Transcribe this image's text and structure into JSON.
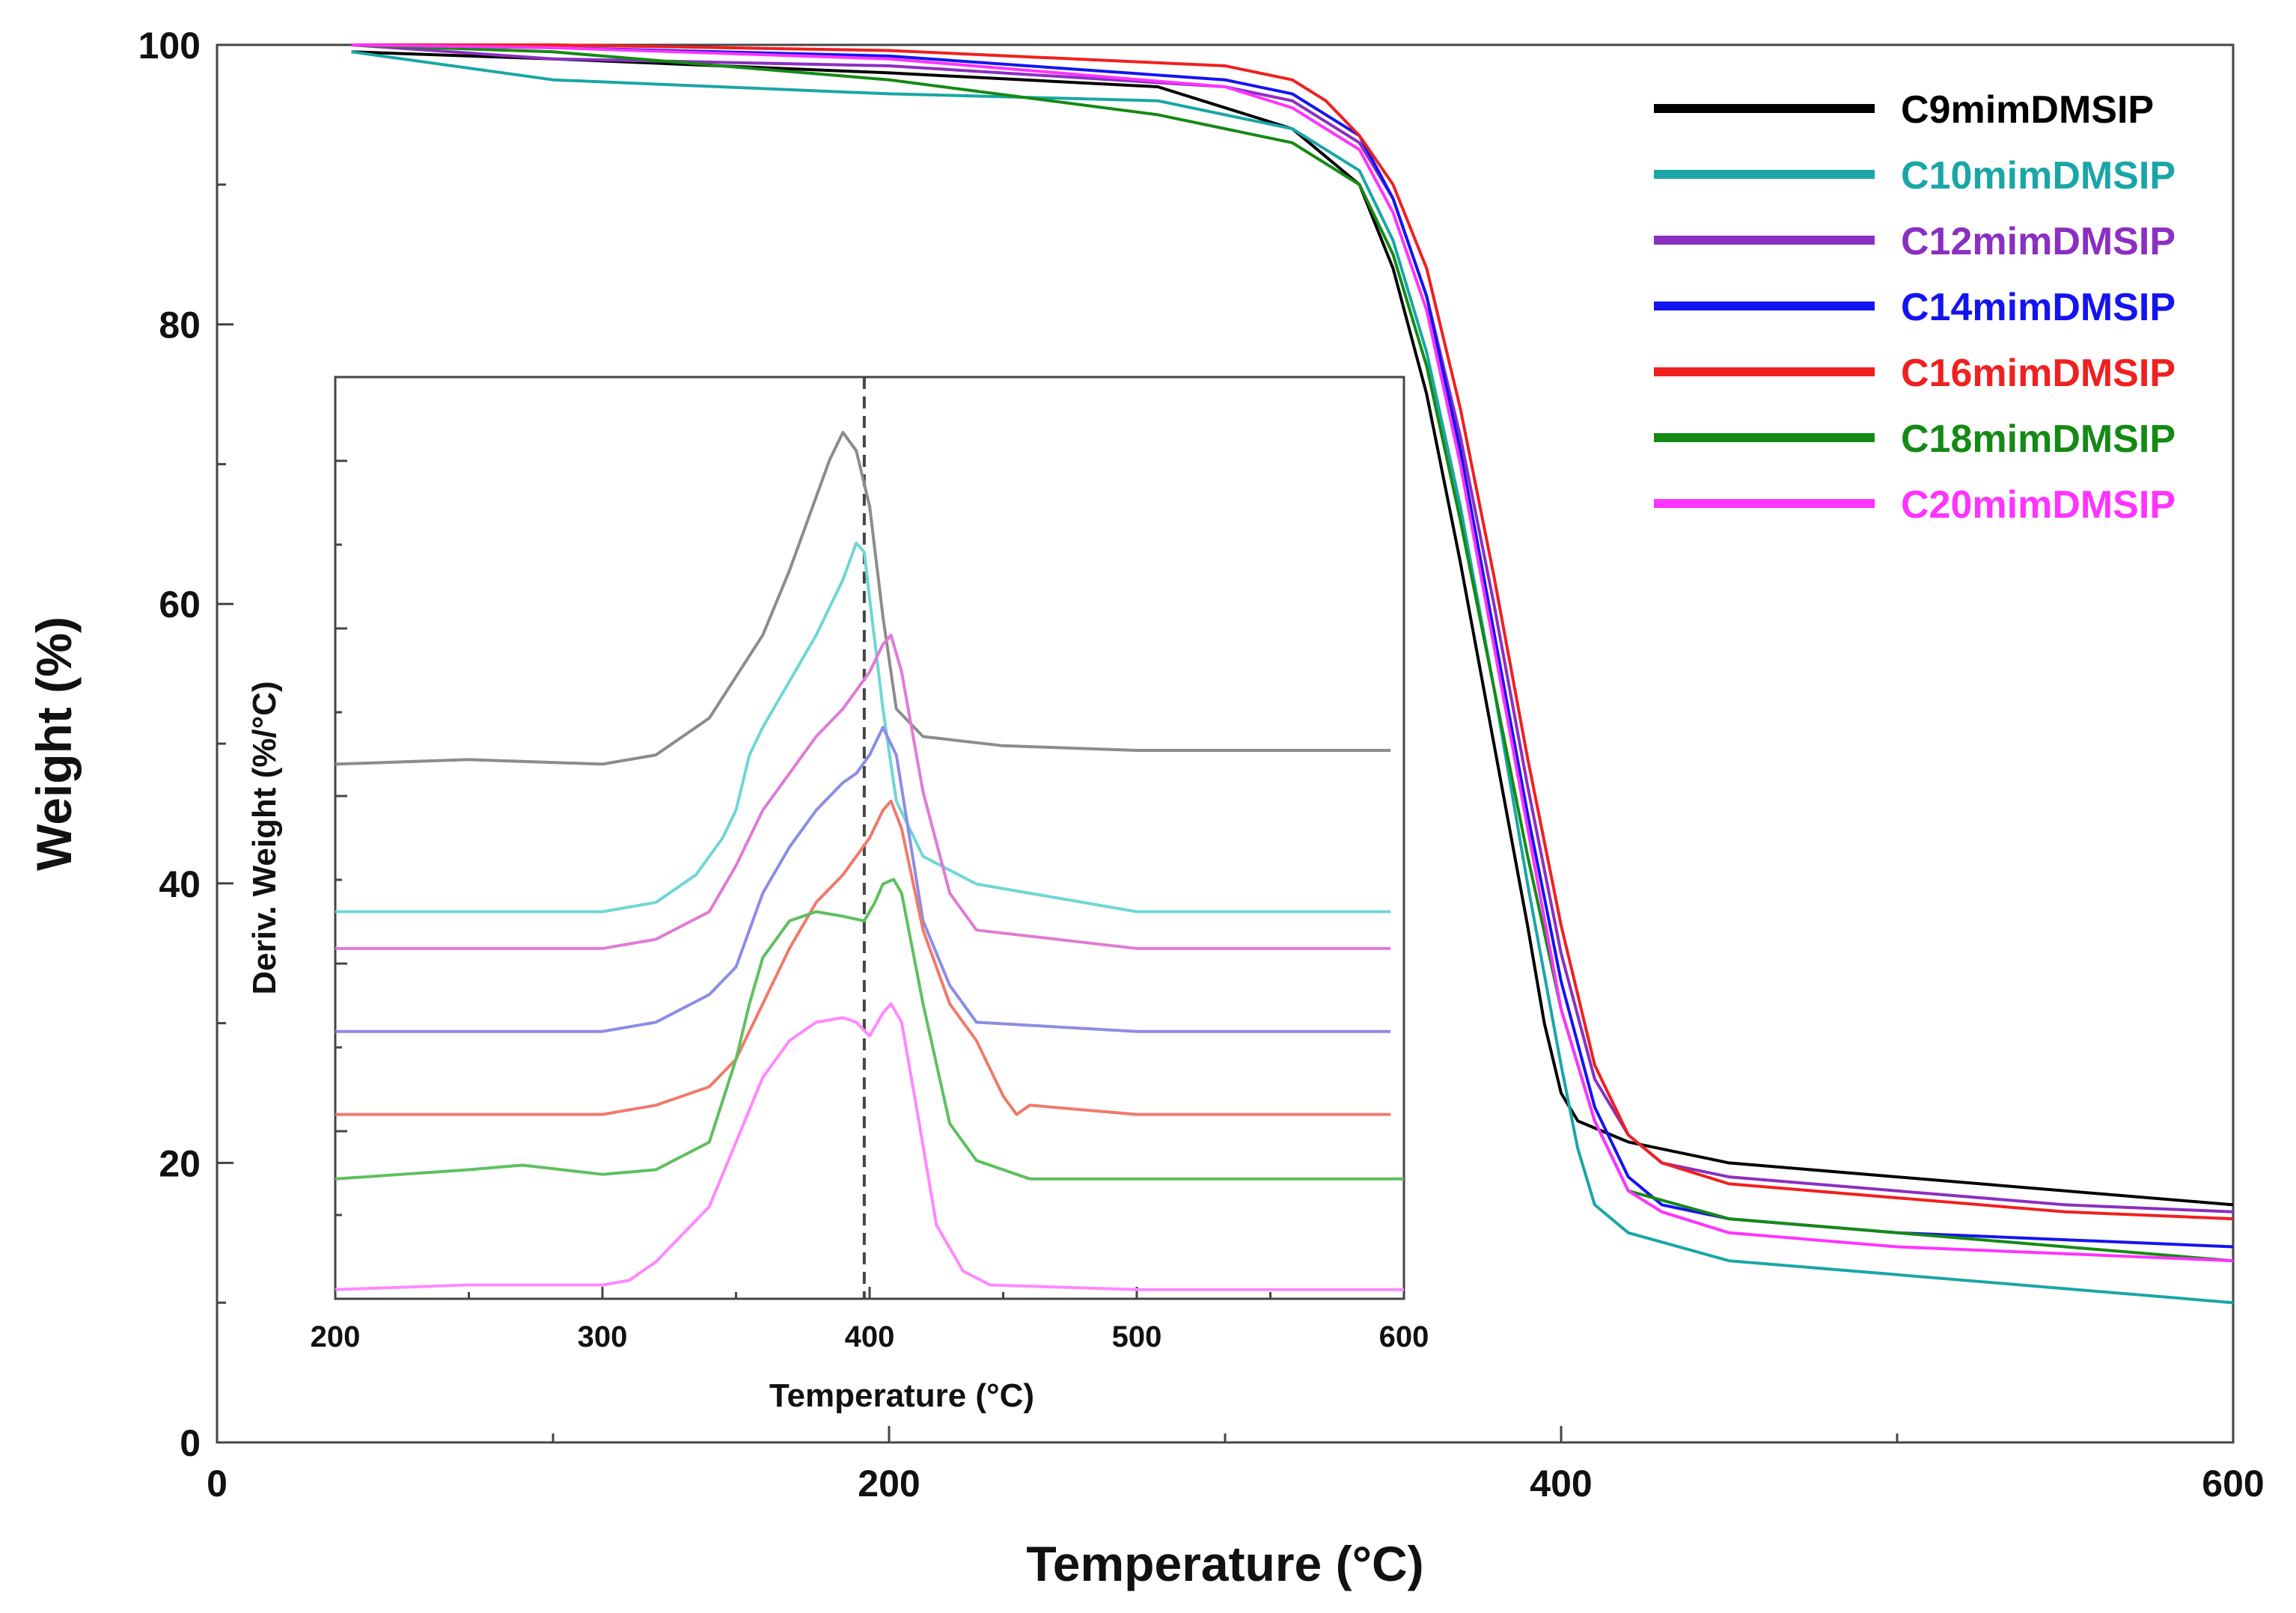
{
  "chart_data": [
    {
      "type": "line",
      "title": "",
      "xlabel": "Temperature (°C)",
      "ylabel": "Weight (%)",
      "xlim": [
        0,
        600
      ],
      "ylim": [
        0,
        100
      ],
      "xticks": [
        "0",
        "200",
        "400",
        "600"
      ],
      "yticks": [
        "0",
        "20",
        "40",
        "60",
        "80",
        "100"
      ],
      "grid": false,
      "legend_position": "top-right",
      "series": [
        {
          "name": "C9mimDMSIP",
          "color": "#000000",
          "x": [
            40,
            100,
            200,
            280,
            320,
            340,
            350,
            360,
            370,
            380,
            390,
            395,
            400,
            405,
            420,
            450,
            500,
            550,
            600
          ],
          "y": [
            99.5,
            99,
            98,
            97,
            94,
            90,
            84,
            75,
            63,
            50,
            37,
            30,
            25,
            23,
            21.5,
            20,
            19,
            18,
            17
          ]
        },
        {
          "name": "C10mimDMSIP",
          "color": "#1aa6a6",
          "x": [
            40,
            100,
            200,
            280,
            320,
            340,
            350,
            360,
            370,
            380,
            390,
            400,
            405,
            410,
            420,
            450,
            500,
            550,
            600
          ],
          "y": [
            99.5,
            97.5,
            96.5,
            96,
            94,
            91,
            86,
            78,
            67,
            54,
            40,
            27,
            21,
            17,
            15,
            13,
            12,
            11,
            10
          ]
        },
        {
          "name": "C12mimDMSIP",
          "color": "#8b2fc0",
          "x": [
            40,
            100,
            200,
            300,
            320,
            340,
            350,
            360,
            370,
            380,
            390,
            400,
            410,
            420,
            430,
            450,
            500,
            550,
            600
          ],
          "y": [
            100,
            99,
            98.5,
            97,
            96,
            93,
            89,
            82,
            72,
            60,
            47,
            35,
            26,
            22,
            20,
            19,
            18,
            17,
            16.5
          ]
        },
        {
          "name": "C14mimDMSIP",
          "color": "#1414f0",
          "x": [
            40,
            100,
            200,
            300,
            320,
            340,
            350,
            360,
            370,
            380,
            390,
            400,
            410,
            420,
            430,
            450,
            500,
            550,
            600
          ],
          "y": [
            100,
            99.8,
            99.2,
            97.5,
            96.5,
            93.5,
            89,
            82,
            71,
            58,
            45,
            33,
            24,
            19,
            17,
            16,
            15,
            14.5,
            14
          ]
        },
        {
          "name": "C16mimDMSIP",
          "color": "#f02020",
          "x": [
            40,
            100,
            200,
            300,
            320,
            330,
            340,
            350,
            360,
            370,
            380,
            390,
            400,
            410,
            420,
            430,
            450,
            500,
            550,
            600
          ],
          "y": [
            100,
            100,
            99.6,
            98.5,
            97.5,
            96,
            93.5,
            90,
            84,
            74,
            62,
            49,
            37,
            27,
            22,
            20,
            18.5,
            17.5,
            16.5,
            16
          ]
        },
        {
          "name": "C18mimDMSIP",
          "color": "#148a14",
          "x": [
            40,
            100,
            200,
            280,
            320,
            340,
            350,
            360,
            370,
            380,
            390,
            400,
            410,
            420,
            450,
            500,
            550,
            600
          ],
          "y": [
            100,
            99.5,
            97.5,
            95,
            93,
            90,
            85,
            77,
            66,
            54,
            42,
            31,
            23,
            18,
            16,
            15,
            14,
            13
          ]
        },
        {
          "name": "C20mimDMSIP",
          "color": "#ff33ff",
          "x": [
            40,
            100,
            200,
            300,
            320,
            340,
            350,
            360,
            370,
            380,
            390,
            400,
            410,
            420,
            430,
            450,
            500,
            550,
            600
          ],
          "y": [
            100,
            99.8,
            99,
            97,
            95.5,
            92.5,
            88,
            81,
            70,
            57,
            44,
            31,
            23,
            18,
            16.5,
            15,
            14,
            13.5,
            13
          ]
        }
      ]
    },
    {
      "type": "line",
      "title": "",
      "xlabel": "Temperature (°C)",
      "ylabel": "Deriv. Weight (%/°C)",
      "xlim": [
        200,
        600
      ],
      "ylim": [
        0,
        100
      ],
      "xticks": [
        "200",
        "300",
        "400",
        "500",
        "600"
      ],
      "yticks": [],
      "grid": false,
      "reference_line_x": 398,
      "series": [
        {
          "name": "C9mimDMSIP",
          "color": "#8c8c8c",
          "x": [
            200,
            250,
            300,
            320,
            340,
            360,
            370,
            380,
            385,
            390,
            395,
            400,
            405,
            410,
            420,
            450,
            500,
            550,
            595
          ],
          "y": [
            58,
            58.5,
            58,
            59,
            63,
            72,
            79,
            87,
            91,
            94,
            92,
            86,
            74,
            64,
            61,
            60,
            59.5,
            59.5,
            59.5
          ]
        },
        {
          "name": "C10mimDMSIP",
          "color": "#6fd6d6",
          "x": [
            200,
            250,
            300,
            320,
            335,
            345,
            350,
            355,
            360,
            370,
            380,
            390,
            395,
            398,
            400,
            405,
            410,
            420,
            440,
            500,
            550,
            595
          ],
          "y": [
            42,
            42,
            42,
            43,
            46,
            50,
            53,
            59,
            62,
            67,
            72,
            78,
            82,
            81,
            76,
            64,
            54,
            48,
            45,
            42,
            42,
            42
          ]
        },
        {
          "name": "C12mimDMSIP",
          "color": "#e07ad6",
          "x": [
            200,
            250,
            300,
            320,
            340,
            350,
            360,
            370,
            380,
            390,
            400,
            405,
            408,
            412,
            420,
            430,
            440,
            500,
            550,
            595
          ],
          "y": [
            38,
            38,
            38,
            39,
            42,
            47,
            53,
            57,
            61,
            64,
            68,
            71,
            72,
            68,
            55,
            44,
            40,
            38,
            38,
            38
          ]
        },
        {
          "name": "C14mimDMSIP",
          "color": "#8c8ce6",
          "x": [
            200,
            250,
            300,
            320,
            340,
            350,
            360,
            370,
            380,
            390,
            395,
            400,
            405,
            410,
            415,
            420,
            430,
            440,
            500,
            550,
            595
          ],
          "y": [
            29,
            29,
            29,
            30,
            33,
            36,
            44,
            49,
            53,
            56,
            57,
            59,
            62,
            59,
            50,
            41,
            34,
            30,
            29,
            29,
            29
          ]
        },
        {
          "name": "C16mimDMSIP",
          "color": "#f07a6a",
          "x": [
            200,
            250,
            300,
            320,
            340,
            350,
            360,
            370,
            380,
            390,
            400,
            405,
            408,
            412,
            420,
            430,
            440,
            450,
            455,
            460,
            500,
            550,
            595
          ],
          "y": [
            20,
            20,
            20,
            21,
            23,
            26,
            32,
            38,
            43,
            46,
            50,
            53,
            54,
            51,
            40,
            32,
            28,
            22,
            20,
            21,
            20,
            20,
            20
          ]
        },
        {
          "name": "C18mimDMSIP",
          "color": "#5ec05e",
          "x": [
            200,
            250,
            270,
            300,
            320,
            340,
            350,
            355,
            360,
            370,
            380,
            390,
            398,
            402,
            405,
            409,
            412,
            420,
            430,
            440,
            460,
            500,
            600
          ],
          "y": [
            13,
            14,
            14.5,
            13.5,
            14,
            17,
            26,
            32,
            37,
            41,
            42,
            41.5,
            41,
            43,
            45,
            45.5,
            44,
            32,
            19,
            15,
            13,
            13,
            13
          ]
        },
        {
          "name": "C20mimDMSIP",
          "color": "#ff88ff",
          "x": [
            200,
            250,
            300,
            310,
            320,
            340,
            350,
            360,
            370,
            380,
            390,
            395,
            400,
            405,
            408,
            412,
            418,
            425,
            435,
            445,
            500,
            600
          ],
          "y": [
            1,
            1.5,
            1.5,
            2,
            4,
            10,
            17,
            24,
            28,
            30,
            30.5,
            30,
            28.5,
            31,
            32,
            30,
            20,
            8,
            3,
            1.5,
            1,
            1
          ]
        }
      ]
    }
  ]
}
